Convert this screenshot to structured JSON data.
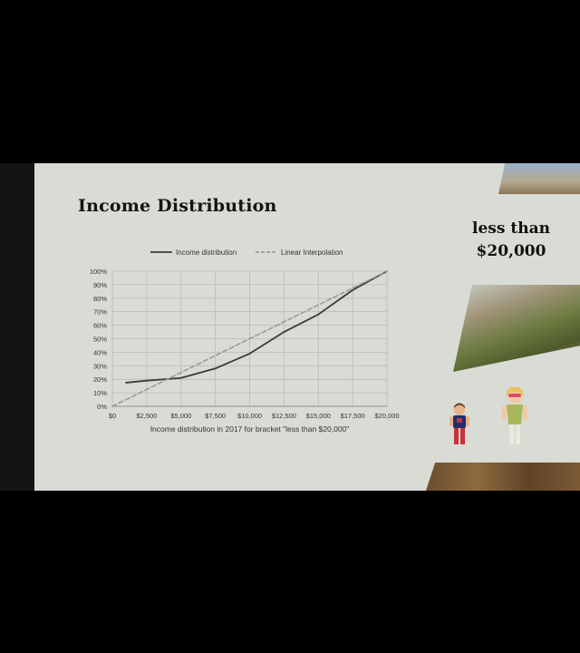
{
  "slide": {
    "title": "Income Distribution",
    "side_text_line1": "less than",
    "side_text_line2": "$20,000"
  },
  "chart_data": {
    "type": "line",
    "x": [
      0,
      2500,
      5000,
      7500,
      10000,
      12500,
      15000,
      17500,
      20000
    ],
    "x_tick_labels": [
      "$0",
      "$2,500",
      "$5,000",
      "$7,500",
      "$10,000",
      "$12,500",
      "$15,000",
      "$17,500",
      "$20,000"
    ],
    "y_tick_labels": [
      "0%",
      "10%",
      "20%",
      "30%",
      "40%",
      "50%",
      "60%",
      "70%",
      "80%",
      "90%",
      "100%"
    ],
    "xlim": [
      0,
      20000
    ],
    "ylim": [
      0,
      100
    ],
    "xlabel": "Income distribution in 2017 for bracket \"less than $20,000\"",
    "ylabel": "",
    "grid": true,
    "legend_position": "top",
    "series": [
      {
        "name": "Income distribution",
        "style": "solid",
        "color": "#3a3a3a",
        "x": [
          1000,
          2500,
          5000,
          7500,
          10000,
          12500,
          15000,
          17500,
          20000
        ],
        "values": [
          17.5,
          19,
          21,
          28,
          39,
          55,
          68,
          86,
          100
        ]
      },
      {
        "name": "Linear Interpolation",
        "style": "dashed",
        "color": "#9a9a9a",
        "x": [
          0,
          20000
        ],
        "values": [
          0,
          100
        ]
      }
    ]
  },
  "colors": {
    "slide_background": "#d9dcd5",
    "grid": "#b9bcb6",
    "text": "#141414"
  }
}
